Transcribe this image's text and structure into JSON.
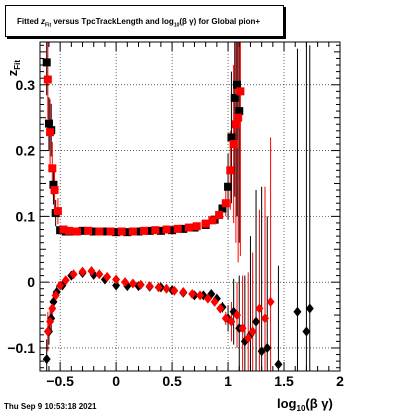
{
  "chart_data": {
    "type": "scatter",
    "title": "Fitted z_Fit versus TpcTrackLength and log10(βγ) for Global pion+",
    "title_parts": {
      "a": "Fitted ",
      "b": "z",
      "b_sub": "Fit",
      "c": " versus TpcTrackLength and log",
      "c_sub": "10",
      "d": "(β γ) for Global pion+"
    },
    "xlabel": "log10(β γ)",
    "xlabel_parts": {
      "a": "log",
      "sub": "10",
      "b": "(β γ)"
    },
    "ylabel": "zFit",
    "ylabel_parts": {
      "a": "z",
      "sub": "Fit"
    },
    "xlim": [
      -0.68,
      2.0
    ],
    "ylim": [
      -0.135,
      0.365
    ],
    "x_ticks": [
      -0.5,
      0,
      0.5,
      1,
      1.5,
      2
    ],
    "x_tick_labels": [
      "−0.5",
      "0",
      "0.5",
      "1",
      "1.5",
      "2"
    ],
    "y_ticks": [
      -0.1,
      0,
      0.1,
      0.2,
      0.3
    ],
    "y_tick_labels": [
      "−0.1",
      "0",
      "0.1",
      "0.2",
      "0.3"
    ],
    "grid": true,
    "series": [
      {
        "color": "#000000",
        "marker": "square",
        "points": [
          [
            -0.62,
            0.334
          ],
          [
            -0.6,
            0.241
          ],
          [
            -0.58,
            0.231
          ],
          [
            -0.56,
            0.148
          ],
          [
            -0.54,
            0.105
          ],
          [
            -0.5,
            0.079
          ],
          [
            -0.45,
            0.077
          ],
          [
            -0.4,
            0.077
          ],
          [
            -0.3,
            0.078
          ],
          [
            -0.2,
            0.077
          ],
          [
            -0.1,
            0.077
          ],
          [
            0.0,
            0.076
          ],
          [
            0.1,
            0.076
          ],
          [
            0.2,
            0.077
          ],
          [
            0.3,
            0.078
          ],
          [
            0.4,
            0.078
          ],
          [
            0.5,
            0.079
          ],
          [
            0.6,
            0.081
          ],
          [
            0.7,
            0.083
          ],
          [
            0.8,
            0.087
          ],
          [
            0.88,
            0.095
          ],
          [
            0.95,
            0.112
          ],
          [
            1.0,
            0.145
          ],
          [
            1.03,
            0.22
          ],
          [
            1.06,
            0.28
          ],
          [
            1.08,
            0.3
          ],
          [
            1.1,
            0.26
          ]
        ],
        "errors": [
          0.05,
          0.04,
          0.04,
          0.03,
          0.02,
          0.003,
          0.002,
          0.001,
          0.001,
          0.001,
          0.001,
          0.001,
          0.001,
          0.001,
          0.001,
          0.001,
          0.001,
          0.002,
          0.002,
          0.003,
          0.004,
          0.01,
          0.05,
          0.1,
          0.15,
          0.2,
          0.2
        ]
      },
      {
        "color": "#000000",
        "marker": "diamond",
        "points": [
          [
            -0.62,
            -0.117
          ],
          [
            -0.6,
            -0.075
          ],
          [
            -0.58,
            -0.055
          ],
          [
            -0.56,
            -0.03
          ],
          [
            -0.53,
            -0.015
          ],
          [
            -0.48,
            -0.005
          ],
          [
            -0.4,
            0.01
          ],
          [
            -0.3,
            0.014
          ],
          [
            -0.2,
            0.011
          ],
          [
            -0.1,
            0.004
          ],
          [
            0.0,
            -0.005
          ],
          [
            0.1,
            -0.006
          ],
          [
            0.2,
            -0.006
          ],
          [
            0.3,
            -0.007
          ],
          [
            0.4,
            -0.008
          ],
          [
            0.5,
            -0.012
          ],
          [
            0.6,
            -0.016
          ],
          [
            0.7,
            -0.02
          ],
          [
            0.78,
            -0.02
          ],
          [
            0.85,
            -0.018
          ],
          [
            0.9,
            -0.025
          ],
          [
            0.95,
            -0.038
          ],
          [
            1.0,
            -0.055
          ],
          [
            1.05,
            -0.045
          ],
          [
            1.1,
            -0.07
          ],
          [
            1.15,
            -0.09
          ],
          [
            1.2,
            -0.08
          ],
          [
            1.25,
            -0.06
          ],
          [
            1.3,
            -0.105
          ],
          [
            1.35,
            -0.1
          ],
          [
            1.45,
            -0.125
          ],
          [
            1.62,
            -0.045
          ],
          [
            1.7,
            -0.075
          ],
          [
            1.73,
            -0.04
          ]
        ],
        "errors": [
          0.03,
          0.02,
          0.02,
          0.015,
          0.01,
          0.005,
          0.002,
          0.002,
          0.001,
          0.001,
          0.001,
          0.001,
          0.001,
          0.001,
          0.001,
          0.002,
          0.002,
          0.003,
          0.003,
          0.004,
          0.005,
          0.008,
          0.02,
          0.05,
          0.08,
          0.1,
          0.15,
          0.2,
          0.25,
          0.2,
          0.15,
          0.4,
          0.5,
          0.4
        ]
      },
      {
        "color": "#ff0000",
        "marker": "square",
        "points": [
          [
            -0.61,
            0.308
          ],
          [
            -0.59,
            0.228
          ],
          [
            -0.57,
            0.173
          ],
          [
            -0.55,
            0.14
          ],
          [
            -0.52,
            0.108
          ],
          [
            -0.47,
            0.08
          ],
          [
            -0.42,
            0.078
          ],
          [
            -0.35,
            0.077
          ],
          [
            -0.25,
            0.078
          ],
          [
            -0.15,
            0.077
          ],
          [
            -0.05,
            0.077
          ],
          [
            0.05,
            0.077
          ],
          [
            0.15,
            0.077
          ],
          [
            0.25,
            0.078
          ],
          [
            0.35,
            0.079
          ],
          [
            0.45,
            0.08
          ],
          [
            0.55,
            0.081
          ],
          [
            0.65,
            0.083
          ],
          [
            0.72,
            0.085
          ],
          [
            0.8,
            0.089
          ],
          [
            0.86,
            0.094
          ],
          [
            0.92,
            0.102
          ],
          [
            0.98,
            0.12
          ],
          [
            1.02,
            0.17
          ],
          [
            1.05,
            0.21
          ],
          [
            1.07,
            0.24
          ],
          [
            1.09,
            0.25
          ],
          [
            1.11,
            0.29
          ]
        ],
        "errors": [
          0.06,
          0.05,
          0.04,
          0.03,
          0.02,
          0.003,
          0.002,
          0.001,
          0.001,
          0.001,
          0.001,
          0.001,
          0.001,
          0.001,
          0.001,
          0.001,
          0.002,
          0.002,
          0.002,
          0.003,
          0.004,
          0.006,
          0.02,
          0.06,
          0.12,
          0.18,
          0.22,
          0.25
        ]
      },
      {
        "color": "#ff0000",
        "marker": "diamond",
        "points": [
          [
            -0.61,
            -0.075
          ],
          [
            -0.59,
            -0.06
          ],
          [
            -0.57,
            -0.04
          ],
          [
            -0.54,
            -0.02
          ],
          [
            -0.5,
            -0.005
          ],
          [
            -0.45,
            0.003
          ],
          [
            -0.38,
            0.012
          ],
          [
            -0.3,
            0.016
          ],
          [
            -0.22,
            0.017
          ],
          [
            -0.15,
            0.012
          ],
          [
            -0.08,
            0.008
          ],
          [
            0.0,
            0.004
          ],
          [
            0.08,
            0.0
          ],
          [
            0.15,
            -0.002
          ],
          [
            0.22,
            -0.004
          ],
          [
            0.3,
            -0.006
          ],
          [
            0.38,
            -0.008
          ],
          [
            0.45,
            -0.01
          ],
          [
            0.52,
            -0.013
          ],
          [
            0.6,
            -0.015
          ],
          [
            0.68,
            -0.018
          ],
          [
            0.75,
            -0.02
          ],
          [
            0.82,
            -0.025
          ],
          [
            0.88,
            -0.03
          ],
          [
            0.93,
            -0.04
          ],
          [
            0.98,
            -0.055
          ],
          [
            1.03,
            -0.06
          ],
          [
            1.08,
            -0.05
          ],
          [
            1.13,
            -0.07
          ],
          [
            1.18,
            -0.085
          ],
          [
            1.22,
            -0.075
          ],
          [
            1.28,
            -0.04
          ],
          [
            1.33,
            -0.055
          ],
          [
            1.38,
            -0.03
          ]
        ],
        "errors": [
          0.03,
          0.02,
          0.015,
          0.01,
          0.006,
          0.004,
          0.002,
          0.002,
          0.001,
          0.001,
          0.001,
          0.001,
          0.001,
          0.001,
          0.001,
          0.001,
          0.001,
          0.002,
          0.002,
          0.002,
          0.003,
          0.003,
          0.004,
          0.005,
          0.007,
          0.01,
          0.03,
          0.05,
          0.08,
          0.1,
          0.12,
          0.15,
          0.2,
          0.25
        ]
      }
    ]
  },
  "footer": "Thu Sep  9 10:53:18 2021"
}
